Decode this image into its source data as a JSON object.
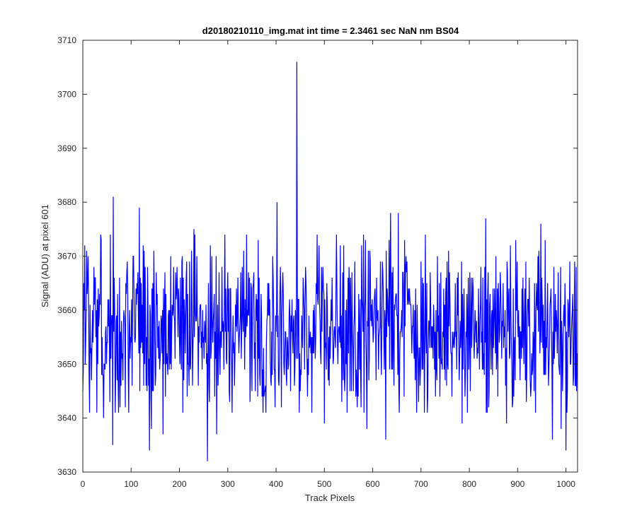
{
  "chart_data": {
    "type": "line",
    "title": "d20180210110_img.mat int time = 2.3461 sec  NaN nm BS04",
    "xlabel": "Track Pixels",
    "ylabel": "Signal (ADU) at pixel 601",
    "xlim": [
      0,
      1024
    ],
    "ylim": [
      3630,
      3710
    ],
    "xticks": [
      0,
      100,
      200,
      300,
      400,
      500,
      600,
      700,
      800,
      900,
      1000
    ],
    "yticks": [
      3630,
      3640,
      3650,
      3660,
      3670,
      3680,
      3690,
      3700,
      3710
    ],
    "grid": false,
    "legend": "none",
    "series": [
      {
        "color": "#0000ff",
        "noise_seed": 20180210,
        "x_start": 0,
        "x_end": 1023,
        "baseline": 3657,
        "noise_amplitude": 22,
        "features": [
          {
            "x": 0,
            "y": 3645
          },
          {
            "x": 4,
            "y": 3672
          },
          {
            "x": 14,
            "y": 3641
          },
          {
            "x": 37,
            "y": 3674
          },
          {
            "x": 43,
            "y": 3640
          },
          {
            "x": 57,
            "y": 3674
          },
          {
            "x": 62,
            "y": 3635
          },
          {
            "x": 63,
            "y": 3681
          },
          {
            "x": 117,
            "y": 3679
          },
          {
            "x": 138,
            "y": 3634
          },
          {
            "x": 142,
            "y": 3638
          },
          {
            "x": 166,
            "y": 3637
          },
          {
            "x": 230,
            "y": 3675
          },
          {
            "x": 258,
            "y": 3632
          },
          {
            "x": 277,
            "y": 3637
          },
          {
            "x": 402,
            "y": 3680
          },
          {
            "x": 443,
            "y": 3706
          },
          {
            "x": 448,
            "y": 3641
          },
          {
            "x": 500,
            "y": 3639
          },
          {
            "x": 588,
            "y": 3638
          },
          {
            "x": 627,
            "y": 3636
          },
          {
            "x": 637,
            "y": 3678
          },
          {
            "x": 653,
            "y": 3678
          },
          {
            "x": 785,
            "y": 3639
          },
          {
            "x": 834,
            "y": 3677
          },
          {
            "x": 877,
            "y": 3639
          },
          {
            "x": 948,
            "y": 3676
          },
          {
            "x": 972,
            "y": 3636
          },
          {
            "x": 990,
            "y": 3638
          },
          {
            "x": 1000,
            "y": 3634
          },
          {
            "x": 1023,
            "y": 3652
          }
        ]
      }
    ]
  }
}
